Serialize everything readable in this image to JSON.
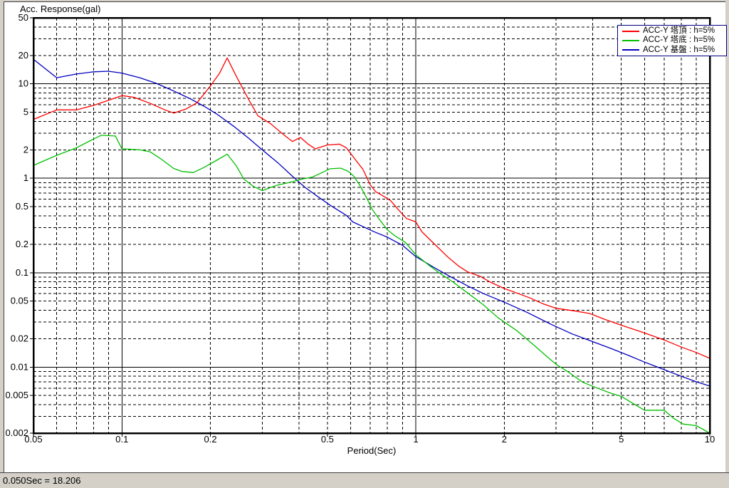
{
  "window": {
    "status_bar": {
      "text": "0.050Sec = 18.206"
    }
  },
  "chart_data": {
    "type": "line",
    "title": "",
    "ylabel": "Acc. Response(gal)",
    "xlabel": "Period(Sec)",
    "x_scale": "log",
    "y_scale": "log",
    "xlim": [
      0.05,
      10
    ],
    "ylim": [
      0.002,
      50
    ],
    "x_ticks": [
      0.05,
      0.1,
      0.2,
      0.5,
      1,
      2,
      5,
      10
    ],
    "x_tick_labels": [
      "0.05",
      "0.1",
      "0.2",
      "0.5",
      "1",
      "2",
      "5",
      "10"
    ],
    "y_ticks": [
      50,
      20,
      10,
      5,
      2,
      1,
      0.5,
      0.2,
      0.1,
      0.05,
      0.02,
      0.01,
      0.005,
      0.002
    ],
    "y_tick_labels": [
      "50",
      "20",
      "10",
      "5",
      "2",
      "1",
      "0.5",
      "0.2",
      "0.1",
      "0.05",
      "0.02",
      "0.01",
      "0.005",
      "0.002"
    ],
    "grid": "decade lines solid black, intermediate log steps dashed black",
    "legend_position": "top-right",
    "legend_border_color": "#000080",
    "series": [
      {
        "name": "ACC-Y 塔頂 : h=5%",
        "color": "#ff0000",
        "points": [
          [
            0.05,
            4.2
          ],
          [
            0.06,
            5.3
          ],
          [
            0.07,
            5.3
          ],
          [
            0.08,
            5.9
          ],
          [
            0.09,
            6.7
          ],
          [
            0.1,
            7.5
          ],
          [
            0.11,
            7.2
          ],
          [
            0.125,
            6.2
          ],
          [
            0.14,
            5.3
          ],
          [
            0.15,
            4.9
          ],
          [
            0.165,
            5.4
          ],
          [
            0.18,
            6.3
          ],
          [
            0.2,
            9.5
          ],
          [
            0.215,
            13.0
          ],
          [
            0.228,
            18.8
          ],
          [
            0.245,
            12.0
          ],
          [
            0.255,
            9.5
          ],
          [
            0.27,
            6.8
          ],
          [
            0.29,
            4.6
          ],
          [
            0.32,
            3.8
          ],
          [
            0.35,
            3.0
          ],
          [
            0.38,
            2.45
          ],
          [
            0.405,
            2.7
          ],
          [
            0.43,
            2.3
          ],
          [
            0.455,
            2.05
          ],
          [
            0.5,
            2.25
          ],
          [
            0.55,
            2.3
          ],
          [
            0.58,
            2.1
          ],
          [
            0.625,
            1.55
          ],
          [
            0.66,
            1.25
          ],
          [
            0.7,
            0.85
          ],
          [
            0.73,
            0.72
          ],
          [
            0.78,
            0.64
          ],
          [
            0.82,
            0.58
          ],
          [
            0.88,
            0.45
          ],
          [
            0.93,
            0.375
          ],
          [
            1.0,
            0.345
          ],
          [
            1.05,
            0.27
          ],
          [
            1.15,
            0.205
          ],
          [
            1.28,
            0.148
          ],
          [
            1.4,
            0.117
          ],
          [
            1.5,
            0.102
          ],
          [
            1.65,
            0.092
          ],
          [
            1.8,
            0.079
          ],
          [
            2.0,
            0.068
          ],
          [
            2.2,
            0.061
          ],
          [
            2.45,
            0.054
          ],
          [
            2.7,
            0.047
          ],
          [
            3.0,
            0.042
          ],
          [
            3.45,
            0.0395
          ],
          [
            3.9,
            0.037
          ],
          [
            4.4,
            0.032
          ],
          [
            5.0,
            0.0278
          ],
          [
            5.5,
            0.0252
          ],
          [
            6.0,
            0.023
          ],
          [
            7.0,
            0.0194
          ],
          [
            8.0,
            0.0163
          ],
          [
            9.0,
            0.0143
          ],
          [
            10,
            0.0124
          ]
        ]
      },
      {
        "name": "ACC-Y 塔底 : h=5%",
        "color": "#00c000",
        "points": [
          [
            0.05,
            1.37
          ],
          [
            0.06,
            1.75
          ],
          [
            0.07,
            2.1
          ],
          [
            0.08,
            2.6
          ],
          [
            0.085,
            2.85
          ],
          [
            0.095,
            2.8
          ],
          [
            0.1,
            2.05
          ],
          [
            0.115,
            2.0
          ],
          [
            0.125,
            1.9
          ],
          [
            0.135,
            1.62
          ],
          [
            0.15,
            1.27
          ],
          [
            0.16,
            1.18
          ],
          [
            0.175,
            1.15
          ],
          [
            0.19,
            1.3
          ],
          [
            0.21,
            1.55
          ],
          [
            0.228,
            1.8
          ],
          [
            0.245,
            1.35
          ],
          [
            0.26,
            0.98
          ],
          [
            0.28,
            0.82
          ],
          [
            0.3,
            0.74
          ],
          [
            0.335,
            0.84
          ],
          [
            0.37,
            0.9
          ],
          [
            0.41,
            0.98
          ],
          [
            0.445,
            1.03
          ],
          [
            0.48,
            1.15
          ],
          [
            0.51,
            1.26
          ],
          [
            0.555,
            1.28
          ],
          [
            0.59,
            1.18
          ],
          [
            0.615,
            1.05
          ],
          [
            0.645,
            0.84
          ],
          [
            0.68,
            0.62
          ],
          [
            0.71,
            0.47
          ],
          [
            0.76,
            0.35
          ],
          [
            0.8,
            0.285
          ],
          [
            0.85,
            0.245
          ],
          [
            0.92,
            0.21
          ],
          [
            1.0,
            0.155
          ],
          [
            1.1,
            0.122
          ],
          [
            1.2,
            0.1
          ],
          [
            1.35,
            0.078
          ],
          [
            1.5,
            0.061
          ],
          [
            1.7,
            0.0455
          ],
          [
            1.9,
            0.0335
          ],
          [
            2.2,
            0.0245
          ],
          [
            2.5,
            0.0175
          ],
          [
            2.75,
            0.0135
          ],
          [
            3.0,
            0.0107
          ],
          [
            3.3,
            0.0089
          ],
          [
            3.7,
            0.0069
          ],
          [
            4.2,
            0.0059
          ],
          [
            4.6,
            0.0053
          ],
          [
            5.0,
            0.0049
          ],
          [
            5.5,
            0.0041
          ],
          [
            6.0,
            0.0035
          ],
          [
            7.0,
            0.0035
          ],
          [
            7.5,
            0.0029
          ],
          [
            8.1,
            0.0025
          ],
          [
            9.0,
            0.0024
          ],
          [
            10,
            0.002
          ]
        ]
      },
      {
        "name": "ACC-Y 基盤 : h=5%",
        "color": "#0000c0",
        "points": [
          [
            0.05,
            18.2
          ],
          [
            0.06,
            11.6
          ],
          [
            0.07,
            12.7
          ],
          [
            0.08,
            13.4
          ],
          [
            0.09,
            13.6
          ],
          [
            0.1,
            13.0
          ],
          [
            0.115,
            11.6
          ],
          [
            0.13,
            10.2
          ],
          [
            0.15,
            8.4
          ],
          [
            0.17,
            7.0
          ],
          [
            0.19,
            5.8
          ],
          [
            0.21,
            4.8
          ],
          [
            0.24,
            3.55
          ],
          [
            0.27,
            2.65
          ],
          [
            0.3,
            2.0
          ],
          [
            0.34,
            1.45
          ],
          [
            0.38,
            1.05
          ],
          [
            0.42,
            0.8
          ],
          [
            0.47,
            0.62
          ],
          [
            0.52,
            0.5
          ],
          [
            0.58,
            0.405
          ],
          [
            0.61,
            0.345
          ],
          [
            0.65,
            0.315
          ],
          [
            0.72,
            0.272
          ],
          [
            0.8,
            0.238
          ],
          [
            0.9,
            0.195
          ],
          [
            1.0,
            0.148
          ],
          [
            1.15,
            0.114
          ],
          [
            1.3,
            0.092
          ],
          [
            1.5,
            0.0725
          ],
          [
            1.7,
            0.06
          ],
          [
            2.0,
            0.0487
          ],
          [
            2.4,
            0.0378
          ],
          [
            2.9,
            0.0282
          ],
          [
            3.4,
            0.0225
          ],
          [
            4.0,
            0.0186
          ],
          [
            4.6,
            0.0158
          ],
          [
            5.2,
            0.0136
          ],
          [
            6.0,
            0.0113
          ],
          [
            7.0,
            0.0094
          ],
          [
            8.0,
            0.008
          ],
          [
            9.0,
            0.007
          ],
          [
            10,
            0.0063
          ]
        ]
      }
    ]
  }
}
